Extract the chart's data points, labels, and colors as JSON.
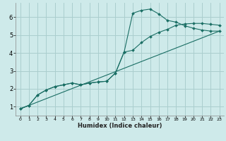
{
  "xlabel": "Humidex (Indice chaleur)",
  "bg_color": "#ceeaea",
  "grid_color": "#aacece",
  "line_color": "#1a6e64",
  "xlim_min": -0.5,
  "xlim_max": 23.5,
  "ylim_min": 0.5,
  "ylim_max": 6.8,
  "xticks": [
    0,
    1,
    2,
    3,
    4,
    5,
    6,
    7,
    8,
    9,
    10,
    11,
    12,
    13,
    14,
    15,
    16,
    17,
    18,
    19,
    20,
    21,
    22,
    23
  ],
  "yticks": [
    1,
    2,
    3,
    4,
    5,
    6
  ],
  "line1_x": [
    0,
    1,
    2,
    3,
    4,
    5,
    6,
    7,
    8,
    9,
    10,
    11,
    12,
    13,
    14,
    15,
    16,
    17,
    18,
    19,
    20,
    21,
    22,
    23
  ],
  "line1_y": [
    0.88,
    1.07,
    1.65,
    1.93,
    2.12,
    2.22,
    2.32,
    2.22,
    2.32,
    2.38,
    2.42,
    2.88,
    4.05,
    6.22,
    6.38,
    6.45,
    6.18,
    5.82,
    5.72,
    5.52,
    5.38,
    5.28,
    5.22,
    5.22
  ],
  "line2_x": [
    0,
    1,
    2,
    3,
    4,
    5,
    6,
    7,
    8,
    9,
    10,
    11,
    12,
    13,
    14,
    15,
    16,
    17,
    18,
    19,
    20,
    21,
    22,
    23
  ],
  "line2_y": [
    0.88,
    1.07,
    1.65,
    1.93,
    2.12,
    2.22,
    2.32,
    2.22,
    2.32,
    2.38,
    2.42,
    2.88,
    4.05,
    4.15,
    4.58,
    4.92,
    5.15,
    5.32,
    5.55,
    5.62,
    5.65,
    5.65,
    5.6,
    5.55
  ],
  "line3_x": [
    0,
    23
  ],
  "line3_y": [
    0.88,
    5.22
  ]
}
